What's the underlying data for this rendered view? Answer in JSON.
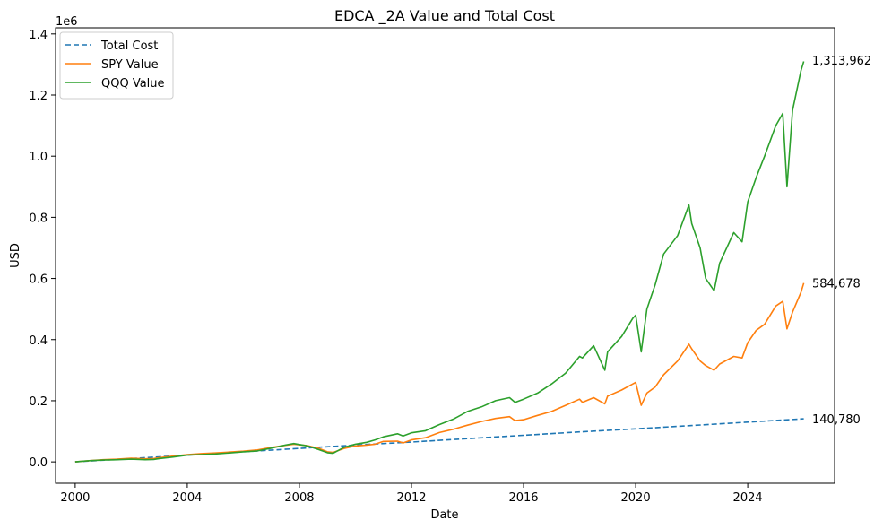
{
  "chart_data": {
    "type": "line",
    "title": "EDCA _2A Value and Total Cost",
    "xlabel": "Date",
    "ylabel": "USD",
    "y_offset_label": "1e6",
    "xlim": [
      1999.3,
      2027.1
    ],
    "ylim": [
      -0.07,
      1.42
    ],
    "x_ticks": [
      2000,
      2004,
      2008,
      2012,
      2016,
      2020,
      2024
    ],
    "y_ticks": [
      0.0,
      0.2,
      0.4,
      0.6,
      0.8,
      1.0,
      1.2,
      1.4
    ],
    "legend": "upper-left",
    "grid": false,
    "series": [
      {
        "name": "Total Cost",
        "color": "#1f77b4",
        "dashed": true,
        "x": [
          2000.0,
          2002.0,
          2004.0,
          2006.0,
          2008.0,
          2010.0,
          2012.0,
          2014.0,
          2016.0,
          2018.0,
          2020.0,
          2022.0,
          2024.0,
          2026.0
        ],
        "y": [
          0.0,
          0.011,
          0.022,
          0.033,
          0.044,
          0.055,
          0.065,
          0.076,
          0.087,
          0.098,
          0.108,
          0.119,
          0.13,
          0.141
        ]
      },
      {
        "name": "SPY Value",
        "color": "#ff7f0e",
        "dashed": false,
        "x": [
          2000.0,
          2000.5,
          2001.0,
          2001.5,
          2002.0,
          2002.5,
          2002.8,
          2003.0,
          2003.5,
          2004.0,
          2004.5,
          2005.0,
          2005.5,
          2006.0,
          2006.5,
          2007.0,
          2007.5,
          2007.8,
          2008.3,
          2008.7,
          2009.0,
          2009.2,
          2009.6,
          2010.0,
          2010.4,
          2010.7,
          2011.0,
          2011.5,
          2011.7,
          2012.0,
          2012.5,
          2013.0,
          2013.5,
          2014.0,
          2014.5,
          2015.0,
          2015.5,
          2015.7,
          2016.0,
          2016.5,
          2017.0,
          2017.5,
          2018.0,
          2018.1,
          2018.5,
          2018.9,
          2019.0,
          2019.5,
          2019.9,
          2020.0,
          2020.2,
          2020.4,
          2020.7,
          2021.0,
          2021.5,
          2021.9,
          2022.0,
          2022.3,
          2022.5,
          2022.8,
          2023.0,
          2023.5,
          2023.8,
          2024.0,
          2024.3,
          2024.6,
          2025.0,
          2025.25,
          2025.4,
          2025.6,
          2025.9,
          2026.0
        ],
        "y": [
          0.0,
          0.004,
          0.007,
          0.009,
          0.012,
          0.01,
          0.011,
          0.014,
          0.019,
          0.024,
          0.027,
          0.029,
          0.032,
          0.035,
          0.039,
          0.047,
          0.054,
          0.058,
          0.053,
          0.044,
          0.033,
          0.031,
          0.044,
          0.052,
          0.055,
          0.058,
          0.067,
          0.068,
          0.062,
          0.072,
          0.079,
          0.096,
          0.107,
          0.12,
          0.132,
          0.142,
          0.148,
          0.135,
          0.138,
          0.152,
          0.165,
          0.185,
          0.205,
          0.195,
          0.21,
          0.19,
          0.215,
          0.235,
          0.255,
          0.26,
          0.185,
          0.225,
          0.245,
          0.285,
          0.33,
          0.385,
          0.37,
          0.33,
          0.315,
          0.3,
          0.32,
          0.345,
          0.34,
          0.39,
          0.43,
          0.45,
          0.51,
          0.525,
          0.435,
          0.49,
          0.555,
          0.585
        ]
      },
      {
        "name": "QQQ Value",
        "color": "#2ca02c",
        "dashed": false,
        "x": [
          2000.0,
          2000.5,
          2001.0,
          2001.5,
          2002.0,
          2002.5,
          2002.8,
          2003.0,
          2003.5,
          2004.0,
          2004.5,
          2005.0,
          2005.5,
          2006.0,
          2006.5,
          2007.0,
          2007.5,
          2007.8,
          2008.3,
          2008.7,
          2009.0,
          2009.2,
          2009.6,
          2010.0,
          2010.4,
          2010.7,
          2011.0,
          2011.5,
          2011.7,
          2012.0,
          2012.5,
          2013.0,
          2013.5,
          2014.0,
          2014.5,
          2015.0,
          2015.5,
          2015.7,
          2016.0,
          2016.5,
          2017.0,
          2017.5,
          2018.0,
          2018.1,
          2018.5,
          2018.9,
          2019.0,
          2019.5,
          2019.9,
          2020.0,
          2020.2,
          2020.4,
          2020.7,
          2021.0,
          2021.5,
          2021.9,
          2022.0,
          2022.3,
          2022.5,
          2022.8,
          2023.0,
          2023.5,
          2023.8,
          2024.0,
          2024.3,
          2024.6,
          2025.0,
          2025.25,
          2025.4,
          2025.6,
          2025.9,
          2026.0
        ],
        "y": [
          0.0,
          0.004,
          0.006,
          0.007,
          0.009,
          0.007,
          0.008,
          0.011,
          0.016,
          0.022,
          0.024,
          0.026,
          0.029,
          0.033,
          0.036,
          0.045,
          0.055,
          0.06,
          0.052,
          0.04,
          0.03,
          0.028,
          0.048,
          0.058,
          0.064,
          0.072,
          0.082,
          0.092,
          0.085,
          0.095,
          0.102,
          0.122,
          0.14,
          0.165,
          0.18,
          0.2,
          0.21,
          0.195,
          0.205,
          0.225,
          0.255,
          0.29,
          0.345,
          0.34,
          0.38,
          0.3,
          0.36,
          0.41,
          0.47,
          0.48,
          0.36,
          0.5,
          0.58,
          0.68,
          0.74,
          0.84,
          0.78,
          0.7,
          0.6,
          0.56,
          0.65,
          0.75,
          0.72,
          0.85,
          0.93,
          1.0,
          1.1,
          1.14,
          0.9,
          1.15,
          1.28,
          1.31
        ]
      }
    ],
    "annotations": [
      {
        "text": "1,313,962",
        "y": 1.314
      },
      {
        "text": "584,678",
        "y": 0.585
      },
      {
        "text": "140,780",
        "y": 0.141
      }
    ]
  }
}
